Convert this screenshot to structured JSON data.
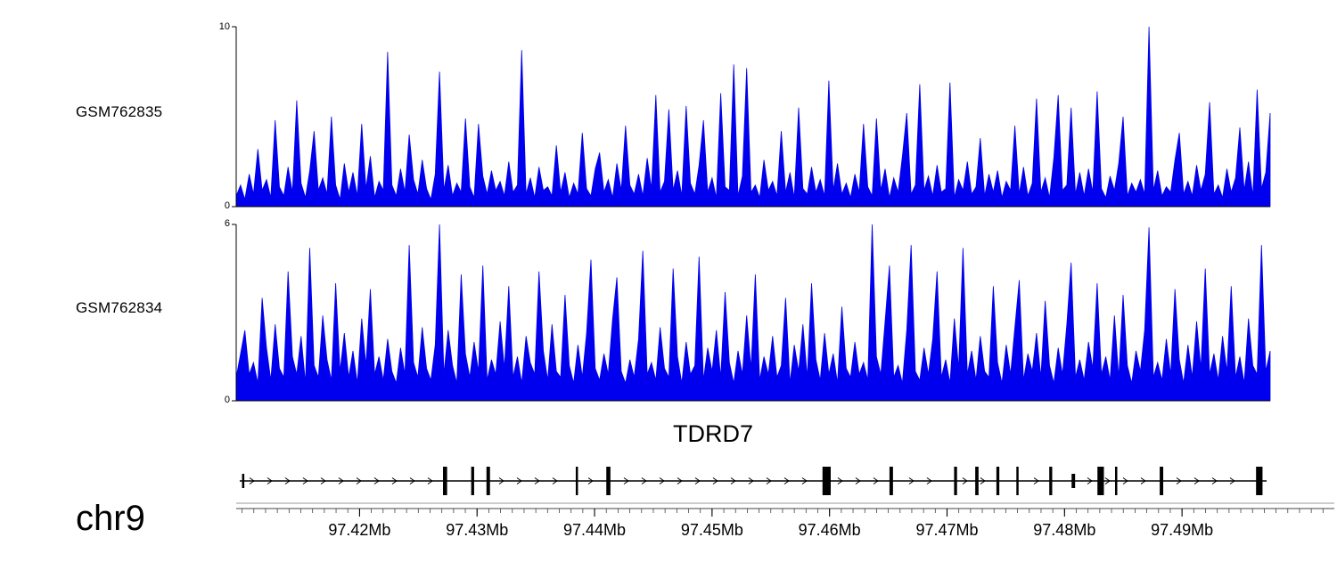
{
  "colors": {
    "signal": "#0000EE",
    "axis": "#000000",
    "background": "#ffffff"
  },
  "chart_data": [
    {
      "type": "area",
      "name": "GSM762835",
      "ylim": [
        0,
        10
      ],
      "color": "#0000EE",
      "values": [
        0.6,
        1.2,
        0.4,
        1.8,
        0.7,
        3.2,
        0.9,
        1.5,
        0.5,
        4.8,
        1.1,
        0.6,
        2.2,
        0.8,
        5.9,
        1.3,
        0.5,
        2.0,
        4.2,
        0.9,
        1.6,
        0.7,
        5.0,
        1.2,
        0.4,
        2.4,
        0.8,
        1.9,
        0.6,
        4.6,
        1.0,
        2.8,
        0.5,
        1.4,
        0.9,
        8.6,
        1.2,
        0.6,
        2.1,
        0.8,
        4.0,
        1.5,
        0.7,
        2.6,
        1.0,
        0.4,
        1.8,
        7.5,
        0.9,
        2.3,
        0.6,
        1.3,
        0.8,
        4.9,
        1.1,
        0.5,
        4.6,
        1.7,
        0.7,
        2.0,
        0.9,
        1.4,
        0.6,
        2.5,
        0.8,
        1.2,
        8.7,
        0.7,
        1.6,
        0.5,
        2.2,
        0.9,
        1.1,
        0.6,
        3.4,
        0.8,
        1.9,
        0.5,
        1.3,
        0.7,
        4.1,
        1.0,
        0.6,
        2.1,
        3.0,
        0.8,
        1.5,
        0.5,
        2.4,
        0.9,
        4.5,
        1.2,
        0.7,
        1.8,
        0.6,
        2.7,
        1.0,
        6.2,
        0.8,
        1.4,
        5.4,
        0.9,
        2.0,
        0.6,
        5.6,
        1.3,
        0.7,
        2.3,
        4.8,
        0.8,
        1.6,
        0.5,
        6.3,
        1.1,
        0.9,
        7.9,
        0.6,
        1.7,
        7.7,
        0.8,
        1.2,
        0.5,
        2.6,
        0.9,
        1.4,
        0.6,
        4.2,
        0.8,
        1.9,
        0.5,
        5.5,
        1.0,
        0.7,
        2.2,
        0.8,
        1.5,
        0.6,
        7.0,
        0.9,
        2.4,
        0.7,
        1.3,
        0.5,
        1.8,
        0.8,
        4.6,
        1.1,
        0.6,
        4.9,
        0.9,
        2.1,
        0.5,
        1.6,
        0.8,
        2.8,
        5.2,
        0.7,
        1.2,
        6.8,
        0.9,
        1.7,
        0.6,
        2.3,
        0.8,
        1.0,
        6.9,
        0.5,
        1.5,
        0.9,
        2.5,
        0.7,
        1.1,
        3.8,
        0.6,
        1.8,
        0.8,
        2.0,
        0.5,
        1.4,
        0.9,
        4.5,
        0.7,
        2.2,
        0.6,
        1.3,
        6.0,
        0.8,
        1.6,
        0.5,
        2.7,
        6.2,
        0.9,
        1.2,
        5.5,
        0.7,
        1.9,
        0.6,
        2.1,
        0.8,
        6.4,
        1.0,
        0.5,
        1.7,
        0.9,
        2.4,
        5.0,
        0.6,
        1.3,
        0.8,
        1.5,
        0.7,
        10.0,
        0.9,
        2.0,
        0.6,
        1.1,
        0.8,
        2.6,
        4.1,
        0.7,
        1.4,
        0.6,
        2.3,
        0.9,
        1.8,
        5.8,
        0.7,
        1.2,
        0.5,
        2.1,
        0.8,
        1.6,
        4.4,
        0.9,
        2.5,
        0.6,
        6.5,
        1.0,
        1.9,
        5.2
      ]
    },
    {
      "type": "area",
      "name": "GSM762834",
      "ylim": [
        0,
        6
      ],
      "color": "#0000EE",
      "values": [
        0.8,
        1.6,
        2.4,
        0.9,
        1.3,
        0.6,
        3.5,
        1.8,
        0.7,
        2.6,
        1.1,
        0.8,
        4.4,
        1.5,
        0.9,
        2.2,
        0.6,
        5.2,
        1.2,
        0.8,
        2.9,
        1.4,
        0.7,
        4.0,
        1.0,
        2.3,
        0.8,
        1.7,
        0.6,
        2.8,
        1.2,
        3.8,
        0.9,
        1.5,
        0.7,
        2.1,
        1.0,
        0.6,
        1.8,
        0.9,
        5.3,
        1.3,
        0.8,
        2.5,
        1.1,
        0.7,
        1.9,
        6.0,
        0.9,
        2.4,
        1.2,
        0.6,
        4.3,
        1.6,
        0.8,
        2.0,
        1.0,
        4.6,
        0.7,
        1.4,
        0.9,
        2.7,
        1.1,
        3.9,
        0.8,
        1.5,
        0.6,
        2.2,
        1.3,
        0.9,
        4.4,
        1.7,
        0.7,
        2.6,
        1.0,
        0.8,
        3.6,
        1.2,
        0.6,
        1.9,
        0.8,
        2.3,
        4.8,
        1.1,
        0.7,
        1.6,
        0.9,
        2.8,
        4.2,
        1.0,
        0.6,
        1.4,
        0.8,
        2.1,
        5.1,
        0.9,
        1.3,
        0.7,
        2.5,
        1.1,
        0.8,
        4.5,
        1.5,
        0.6,
        2.0,
        0.9,
        1.2,
        4.9,
        0.7,
        1.8,
        1.0,
        2.4,
        0.8,
        3.7,
        1.3,
        0.6,
        1.7,
        0.9,
        2.9,
        1.1,
        4.3,
        0.7,
        1.5,
        0.9,
        2.2,
        0.8,
        1.2,
        3.5,
        0.6,
        1.9,
        1.0,
        2.6,
        0.8,
        4.0,
        1.4,
        0.7,
        2.3,
        0.9,
        1.6,
        0.6,
        3.2,
        1.1,
        0.8,
        2.0,
        0.9,
        1.3,
        0.7,
        6.0,
        1.5,
        0.9,
        2.7,
        4.6,
        0.8,
        1.2,
        0.6,
        2.4,
        5.3,
        1.0,
        0.7,
        1.8,
        0.9,
        2.1,
        4.4,
        0.8,
        1.4,
        0.6,
        2.8,
        1.1,
        5.2,
        0.9,
        1.7,
        0.7,
        2.2,
        1.0,
        0.8,
        3.9,
        1.3,
        0.6,
        1.9,
        0.9,
        2.5,
        4.1,
        0.7,
        1.6,
        1.0,
        2.3,
        0.8,
        3.4,
        1.2,
        0.6,
        1.8,
        0.9,
        2.6,
        4.7,
        0.8,
        1.4,
        0.7,
        2.0,
        1.1,
        4.0,
        0.9,
        1.5,
        0.7,
        2.9,
        0.8,
        3.6,
        1.2,
        0.6,
        1.7,
        1.0,
        2.4,
        5.9,
        0.8,
        1.3,
        0.7,
        2.1,
        0.9,
        3.8,
        1.4,
        0.6,
        1.9,
        0.8,
        2.7,
        1.1,
        4.5,
        0.9,
        1.6,
        0.7,
        2.2,
        1.0,
        3.9,
        0.8,
        1.5,
        0.6,
        2.8,
        1.2,
        0.9,
        5.3,
        1.0,
        1.7
      ]
    },
    {
      "type": "gene-model",
      "gene": "TDRD7",
      "chromosome": "chr9",
      "strand": "right",
      "x_range_mb": [
        97.4095,
        97.4975
      ],
      "gene_span_mb": [
        97.4098,
        97.4972
      ],
      "exons": [
        {
          "start_mb": 97.41,
          "width_kb": 0.12,
          "height": "half"
        },
        {
          "start_mb": 97.4271,
          "width_kb": 0.35,
          "height": "full"
        },
        {
          "start_mb": 97.4295,
          "width_kb": 0.25,
          "height": "full"
        },
        {
          "start_mb": 97.4308,
          "width_kb": 0.3,
          "height": "full"
        },
        {
          "start_mb": 97.4384,
          "width_kb": 0.18,
          "height": "full"
        },
        {
          "start_mb": 97.441,
          "width_kb": 0.35,
          "height": "full"
        },
        {
          "start_mb": 97.4594,
          "width_kb": 0.7,
          "height": "full"
        },
        {
          "start_mb": 97.4651,
          "width_kb": 0.3,
          "height": "full"
        },
        {
          "start_mb": 97.4706,
          "width_kb": 0.25,
          "height": "full"
        },
        {
          "start_mb": 97.4724,
          "width_kb": 0.28,
          "height": "full"
        },
        {
          "start_mb": 97.4742,
          "width_kb": 0.25,
          "height": "full"
        },
        {
          "start_mb": 97.4759,
          "width_kb": 0.18,
          "height": "full"
        },
        {
          "start_mb": 97.4787,
          "width_kb": 0.25,
          "height": "full"
        },
        {
          "start_mb": 97.4806,
          "width_kb": 0.3,
          "height": "half"
        },
        {
          "start_mb": 97.4828,
          "width_kb": 0.55,
          "height": "full"
        },
        {
          "start_mb": 97.4843,
          "width_kb": 0.18,
          "height": "full"
        },
        {
          "start_mb": 97.4881,
          "width_kb": 0.3,
          "height": "full"
        },
        {
          "start_mb": 97.4963,
          "width_kb": 0.55,
          "height": "full"
        }
      ],
      "axis": {
        "labels": [
          "97.42Mb",
          "97.43Mb",
          "97.44Mb",
          "97.45Mb",
          "97.46Mb",
          "97.47Mb",
          "97.48Mb",
          "97.49Mb"
        ],
        "positions_mb": [
          97.42,
          97.43,
          97.44,
          97.45,
          97.46,
          97.47,
          97.48,
          97.49
        ],
        "minor_step_mb": 0.001
      }
    }
  ]
}
